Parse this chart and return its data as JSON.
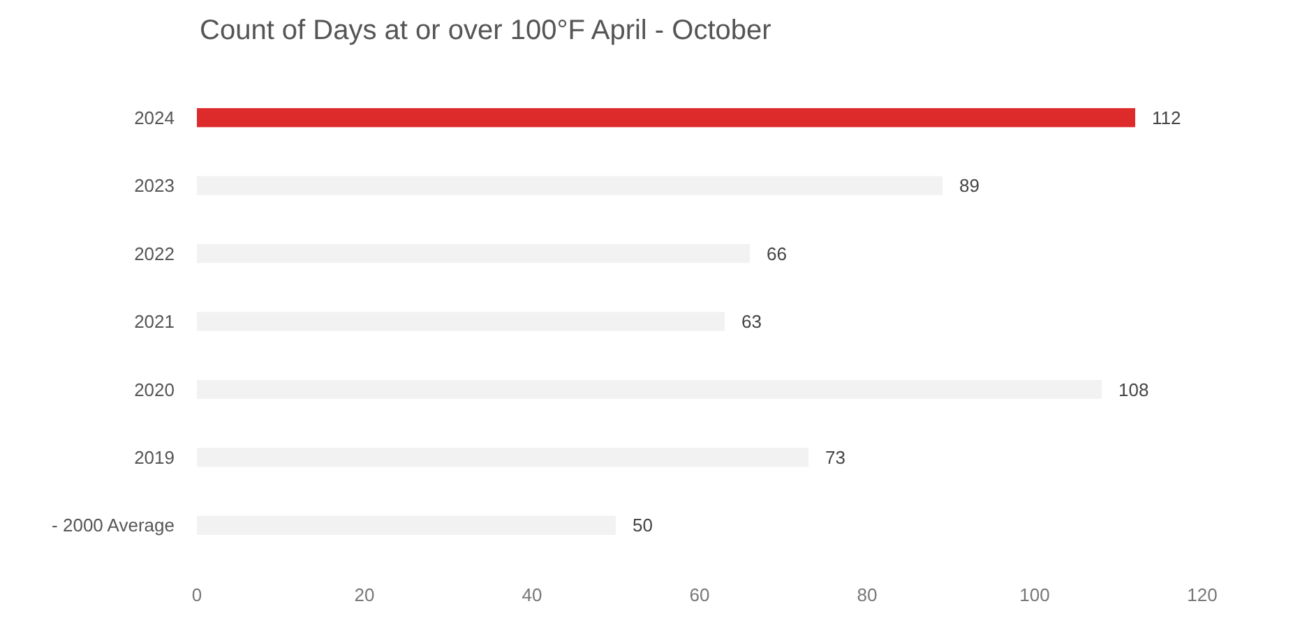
{
  "chart_data": {
    "type": "bar",
    "orientation": "horizontal",
    "title": "Count of Days at or over 100°F April - October",
    "categories": [
      "2024",
      "2023",
      "2022",
      "2021",
      "2020",
      "2019",
      "- 2000 Average"
    ],
    "values": [
      112,
      89,
      66,
      63,
      108,
      73,
      50
    ],
    "colors": [
      "#dd2b2b",
      "#f2f2f2",
      "#f2f2f2",
      "#f2f2f2",
      "#f2f2f2",
      "#f2f2f2",
      "#f2f2f2"
    ],
    "xlim": [
      0,
      120
    ],
    "xticks": [
      0,
      20,
      40,
      60,
      80,
      100,
      120
    ],
    "data_labels": true
  }
}
